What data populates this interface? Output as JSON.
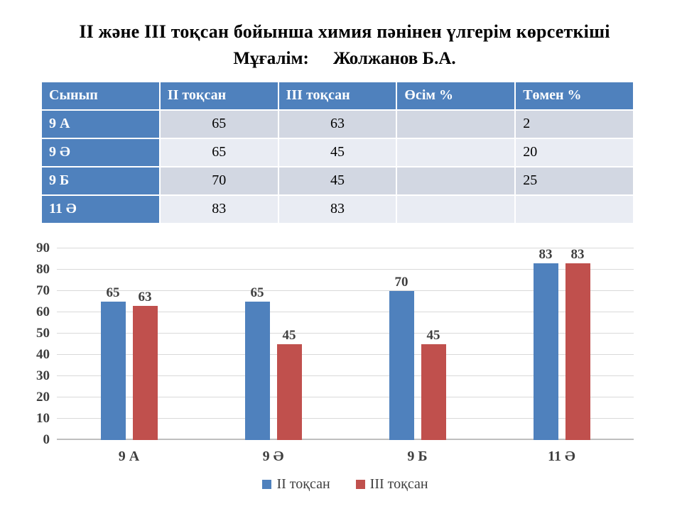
{
  "title": "ІІ және ІІІ  тоқсан бойынша химия пәнінен үлгерім көрсеткіші",
  "subtitle": {
    "label": "Мұғалім:",
    "name": "Жолжанов Б.А."
  },
  "table": {
    "headers": [
      "Сынып",
      "ІІ  тоқсан",
      "ІІІ  тоқсан",
      "Өсім %",
      "Төмен %"
    ],
    "rows": [
      [
        "9 А",
        "65",
        "63",
        "",
        "2"
      ],
      [
        "9 Ә",
        "65",
        "45",
        "",
        "20"
      ],
      [
        "9 Б",
        "70",
        "45",
        "",
        "25"
      ],
      [
        "11 Ә",
        "83",
        "83",
        "",
        ""
      ]
    ]
  },
  "chart_data": {
    "type": "bar",
    "categories": [
      "9 А",
      "9 Ә",
      "9 Б",
      "11 Ә"
    ],
    "series": [
      {
        "name": "ІІ  тоқсан",
        "color": "#4f81bd",
        "values": [
          65,
          65,
          70,
          83
        ]
      },
      {
        "name": "ІІІ  тоқсан",
        "color": "#c0504d",
        "values": [
          63,
          45,
          45,
          83
        ]
      }
    ],
    "title": "",
    "xlabel": "",
    "ylabel": "",
    "ylim": [
      0,
      90
    ],
    "ytick_step": 10,
    "yticks": [
      0,
      10,
      20,
      30,
      40,
      50,
      60,
      70,
      80,
      90
    ],
    "grid": true,
    "data_labels": true,
    "legend_position": "bottom"
  },
  "colors": {
    "series_blue": "#4f81bd",
    "series_red": "#c0504d",
    "table_header_bg": "#4f81bd",
    "row_band_dark": "#d2d7e2",
    "row_band_light": "#e9ecf3",
    "grid_line": "#d9d9d9",
    "axis_text": "#3f3f3f"
  }
}
